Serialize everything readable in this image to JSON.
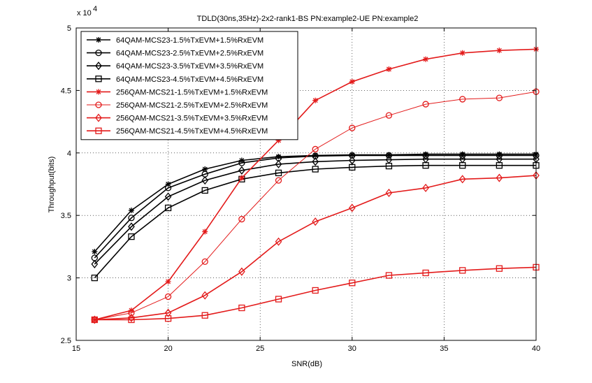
{
  "chart_data": {
    "type": "line",
    "title": "TDLD(30ns,35Hz)-2x2-rank1-BS PN:example2-UE PN:example2",
    "xlabel": "SNR(dB)",
    "ylabel": "Throughput(bits)",
    "y_exponent_label": "x 10",
    "y_exponent_power": "4",
    "xlim": [
      15,
      40
    ],
    "ylim": [
      2.5,
      5
    ],
    "y_scale": 10000,
    "x_ticks": [
      "15",
      "20",
      "25",
      "30",
      "35",
      "40"
    ],
    "y_ticks": [
      "2.5",
      "3",
      "3.5",
      "4",
      "4.5",
      "5"
    ],
    "grid": true,
    "legend_position": "top-left",
    "x": [
      16,
      18,
      20,
      22,
      24,
      26,
      28,
      30,
      32,
      34,
      36,
      38,
      40
    ],
    "series": [
      {
        "name": "64QAM-MCS23-1.5%TxEVM+1.5%RxEVM",
        "color": "#000000",
        "marker": "star",
        "lw": 1.6,
        "values": [
          3.21,
          3.54,
          3.75,
          3.87,
          3.94,
          3.97,
          3.98,
          3.985,
          3.985,
          3.99,
          3.99,
          3.99,
          3.99
        ]
      },
      {
        "name": "64QAM-MCS23-2.5%TxEVM+2.5%RxEVM",
        "color": "#000000",
        "marker": "circle",
        "lw": 1.6,
        "values": [
          3.16,
          3.48,
          3.72,
          3.83,
          3.92,
          3.96,
          3.975,
          3.98,
          3.98,
          3.98,
          3.98,
          3.98,
          3.98
        ]
      },
      {
        "name": "64QAM-MCS23-3.5%TxEVM+3.5%RxEVM",
        "color": "#000000",
        "marker": "diamond",
        "lw": 1.6,
        "values": [
          3.11,
          3.41,
          3.65,
          3.78,
          3.86,
          3.91,
          3.93,
          3.94,
          3.945,
          3.95,
          3.95,
          3.95,
          3.95
        ]
      },
      {
        "name": "64QAM-MCS23-4.5%TxEVM+4.5%RxEVM",
        "color": "#000000",
        "marker": "square",
        "lw": 1.6,
        "values": [
          3.0,
          3.33,
          3.56,
          3.7,
          3.79,
          3.84,
          3.87,
          3.885,
          3.895,
          3.9,
          3.9,
          3.9,
          3.9
        ]
      },
      {
        "name": "256QAM-MCS21-1.5%TxEVM+1.5%RxEVM",
        "color": "#e31a1a",
        "marker": "star",
        "lw": 1.6,
        "values": [
          2.665,
          2.74,
          2.97,
          3.37,
          3.8,
          4.1,
          4.42,
          4.57,
          4.67,
          4.75,
          4.8,
          4.82,
          4.83
        ]
      },
      {
        "name": "256QAM-MCS21-2.5%TxEVM+2.5%RxEVM",
        "color": "#e31a1a",
        "marker": "circle",
        "lw": 1.0,
        "values": [
          2.665,
          2.72,
          2.85,
          3.13,
          3.47,
          3.78,
          4.03,
          4.2,
          4.3,
          4.39,
          4.43,
          4.44,
          4.49
        ]
      },
      {
        "name": "256QAM-MCS21-3.5%TxEVM+3.5%RxEVM",
        "color": "#e31a1a",
        "marker": "diamond",
        "lw": 1.6,
        "values": [
          2.665,
          2.68,
          2.72,
          2.86,
          3.05,
          3.29,
          3.45,
          3.56,
          3.68,
          3.72,
          3.79,
          3.8,
          3.82
        ]
      },
      {
        "name": "256QAM-MCS21-4.5%TxEVM+4.5%RxEVM",
        "color": "#e31a1a",
        "marker": "square",
        "lw": 1.6,
        "values": [
          2.665,
          2.665,
          2.675,
          2.7,
          2.76,
          2.83,
          2.9,
          2.96,
          3.02,
          3.04,
          3.06,
          3.075,
          3.085
        ]
      }
    ]
  }
}
